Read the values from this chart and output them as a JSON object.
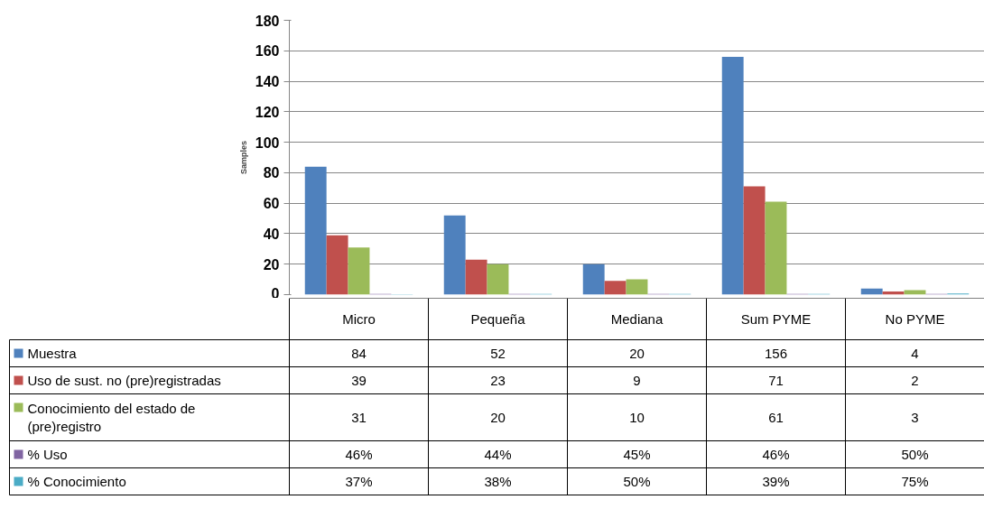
{
  "chart_data": {
    "type": "bar",
    "ylabel": "Samples",
    "categories": [
      "Micro",
      "Pequeña",
      "Mediana",
      "Sum PYME",
      "No PYME"
    ],
    "series": [
      {
        "name": "Muestra",
        "color": "#4f81bd",
        "values": [
          84,
          52,
          20,
          156,
          4
        ],
        "value_labels": [
          "84",
          "52",
          "20",
          "156",
          "4"
        ]
      },
      {
        "name": "Uso de sust. no (pre)registradas",
        "color": "#c0504d",
        "values": [
          39,
          23,
          9,
          71,
          2
        ],
        "value_labels": [
          "39",
          "23",
          "9",
          "71",
          "2"
        ]
      },
      {
        "name": "Conocimiento del estado de (pre)registro",
        "color": "#9bbb59",
        "values": [
          31,
          20,
          10,
          61,
          3
        ],
        "value_labels": [
          "31",
          "20",
          "10",
          "61",
          "3"
        ]
      },
      {
        "name": "% Uso",
        "color": "#8064a2",
        "values": [
          0.46,
          0.44,
          0.45,
          0.46,
          0.5
        ],
        "value_labels": [
          "46%",
          "44%",
          "45%",
          "46%",
          "50%"
        ]
      },
      {
        "name": "% Conocimiento",
        "color": "#4bacc6",
        "values": [
          0.37,
          0.38,
          0.5,
          0.39,
          0.75
        ],
        "value_labels": [
          "37%",
          "38%",
          "50%",
          "39%",
          "75%"
        ]
      }
    ],
    "ylim": [
      0,
      180
    ],
    "yticks": [
      0,
      20,
      40,
      60,
      80,
      100,
      120,
      140,
      160,
      180
    ],
    "grid": "y",
    "legend": "bottom"
  }
}
